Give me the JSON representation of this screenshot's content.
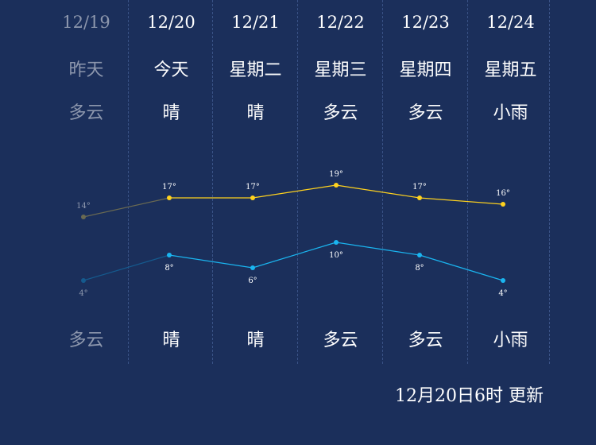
{
  "days": [
    {
      "date": "12/19",
      "day": "昨天",
      "weather_day": "多云",
      "weather_night": "多云"
    },
    {
      "date": "12/20",
      "day": "今天",
      "weather_day": "晴",
      "weather_night": "晴"
    },
    {
      "date": "12/21",
      "day": "星期二",
      "weather_day": "晴",
      "weather_night": "晴"
    },
    {
      "date": "12/22",
      "day": "星期三",
      "weather_day": "多云",
      "weather_night": "多云"
    },
    {
      "date": "12/23",
      "day": "星期四",
      "weather_day": "多云",
      "weather_night": "多云"
    },
    {
      "date": "12/24",
      "day": "星期五",
      "weather_day": "小雨",
      "weather_night": "小雨"
    }
  ],
  "update_text": "12月20日6时 更新",
  "colors": {
    "background": "#1b2f5b",
    "high_line": "#ffd21e",
    "low_line": "#1ab5f0",
    "past_high": "#6a6a52",
    "past_low": "#155a8e",
    "past_text": "#8d97ad"
  },
  "chart_data": {
    "type": "line",
    "categories": [
      "12/19",
      "12/20",
      "12/21",
      "12/22",
      "12/23",
      "12/24"
    ],
    "series": [
      {
        "values": [
          14,
          17,
          17,
          19,
          17,
          16
        ],
        "labels": [
          "14°",
          "17°",
          "17°",
          "19°",
          "17°",
          "16°"
        ]
      },
      {
        "values": [
          4,
          8,
          6,
          10,
          8,
          4
        ],
        "labels": [
          "4°",
          "8°",
          "6°",
          "10°",
          "8°",
          "4°"
        ]
      }
    ]
  }
}
